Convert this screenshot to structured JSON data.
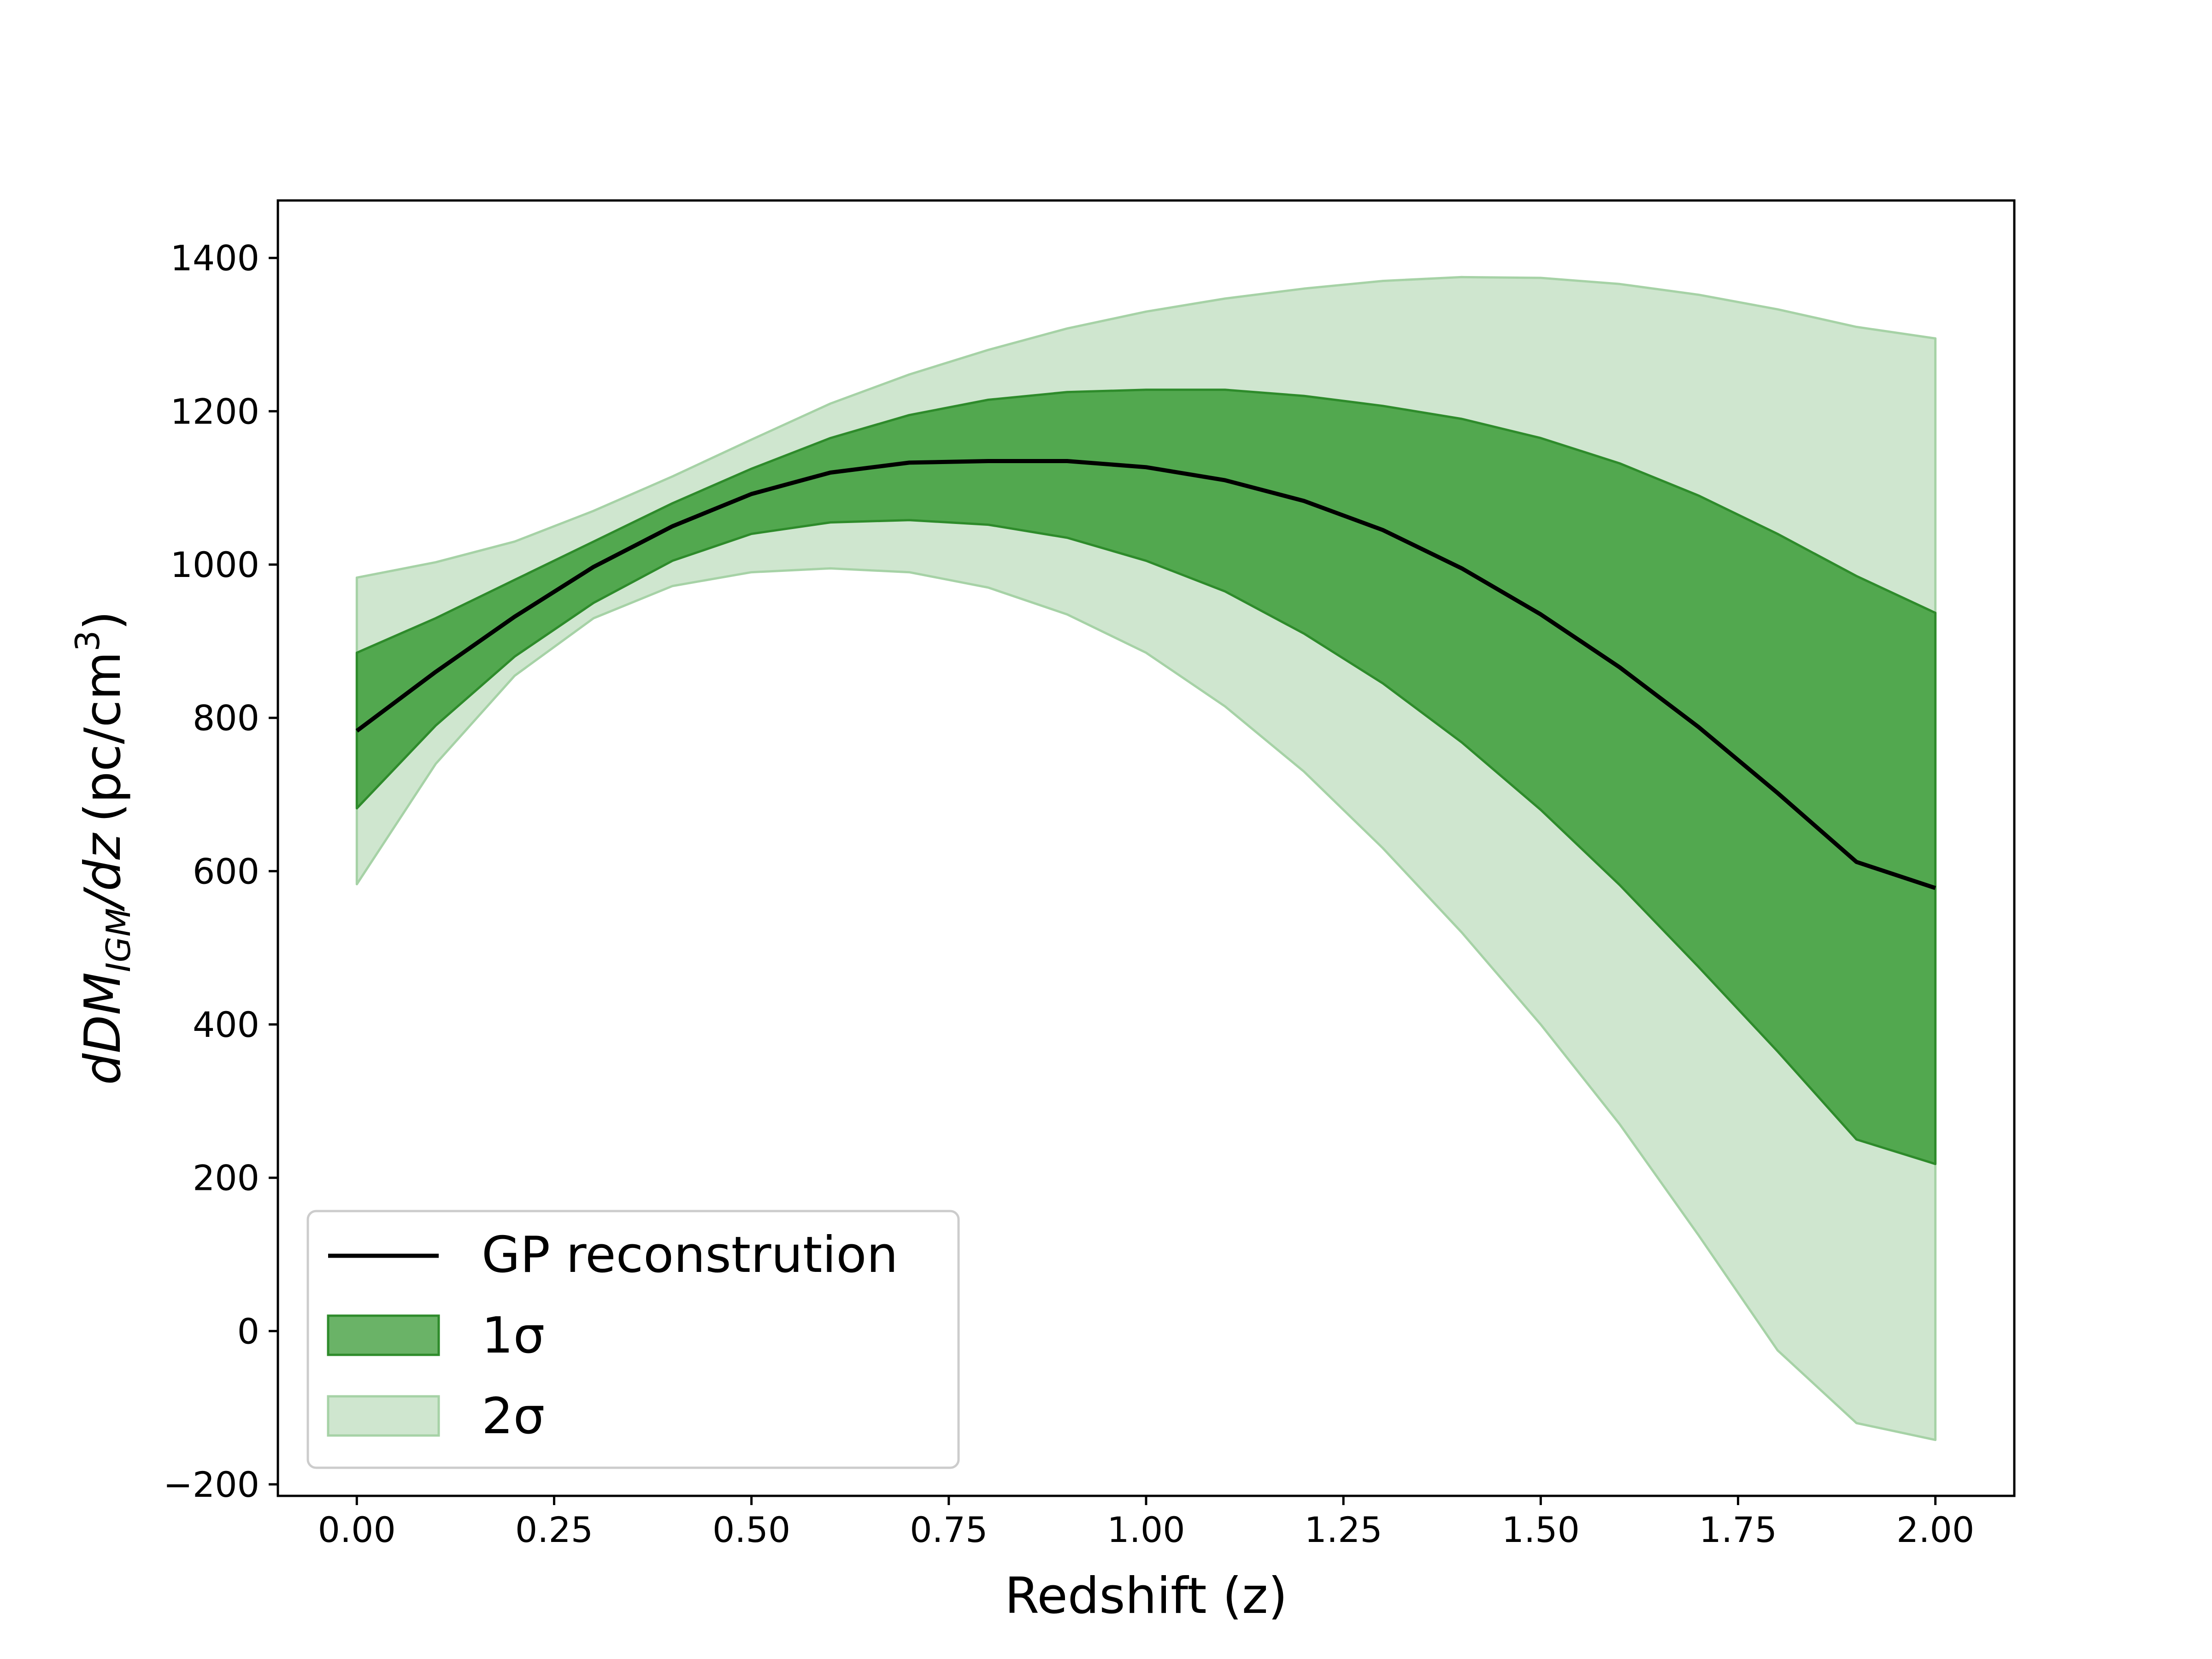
{
  "chart_data": {
    "type": "area",
    "title": "",
    "xlabel": "Redshift (z)",
    "ylabel_parts": {
      "main": "dDM",
      "sub": "IGM",
      "slash": "/dz",
      "unit": "(pc/cm",
      "sup": "3",
      "close": ")"
    },
    "xlim": [
      -0.1,
      2.1
    ],
    "ylim": [
      -215,
      1475
    ],
    "xticks": [
      0.0,
      0.25,
      0.5,
      0.75,
      1.0,
      1.25,
      1.5,
      1.75,
      2.0
    ],
    "xtick_labels": [
      "0.00",
      "0.25",
      "0.50",
      "0.75",
      "1.00",
      "1.25",
      "1.50",
      "1.75",
      "2.00"
    ],
    "yticks": [
      -200,
      0,
      200,
      400,
      600,
      800,
      1000,
      1200,
      1400
    ],
    "ytick_labels": [
      "−200",
      "0",
      "200",
      "400",
      "600",
      "800",
      "1000",
      "1200",
      "1400"
    ],
    "grid": false,
    "legend_position": "lower-left",
    "x": [
      0.0,
      0.1,
      0.2,
      0.3,
      0.4,
      0.5,
      0.6,
      0.7,
      0.8,
      0.9,
      1.0,
      1.1,
      1.2,
      1.3,
      1.4,
      1.5,
      1.6,
      1.7,
      1.8,
      1.9,
      2.0
    ],
    "series": [
      {
        "name": "GP reconstrution",
        "kind": "line",
        "color": "#000000",
        "values": [
          783,
          860,
          932,
          997,
          1050,
          1092,
          1120,
          1133,
          1135,
          1135,
          1127,
          1110,
          1083,
          1045,
          995,
          935,
          866,
          788,
          702,
          612,
          578
        ]
      },
      {
        "name": "1σ",
        "kind": "band",
        "fill": "#52a84f",
        "stroke": "#2e8b2b",
        "upper": [
          885,
          930,
          980,
          1030,
          1080,
          1125,
          1165,
          1195,
          1215,
          1225,
          1228,
          1228,
          1220,
          1207,
          1190,
          1165,
          1132,
          1090,
          1040,
          985,
          937
        ],
        "lower": [
          682,
          790,
          880,
          950,
          1005,
          1040,
          1055,
          1058,
          1052,
          1035,
          1005,
          965,
          910,
          845,
          768,
          680,
          582,
          475,
          365,
          250,
          218
        ]
      },
      {
        "name": "2σ",
        "kind": "band",
        "fill": "#cfe6cf",
        "stroke": "#a6d2a6",
        "upper": [
          983,
          1003,
          1030,
          1070,
          1115,
          1163,
          1210,
          1248,
          1280,
          1308,
          1330,
          1347,
          1360,
          1370,
          1375,
          1374,
          1366,
          1352,
          1333,
          1310,
          1295
        ],
        "lower": [
          583,
          740,
          855,
          930,
          972,
          990,
          995,
          990,
          970,
          935,
          885,
          815,
          730,
          630,
          520,
          400,
          270,
          125,
          -25,
          -120,
          -142
        ]
      }
    ],
    "legend": [
      {
        "label": "GP reconstrution",
        "swatch": "line"
      },
      {
        "label": "1σ",
        "swatch": "band1"
      },
      {
        "label": "2σ",
        "swatch": "band2"
      }
    ]
  }
}
